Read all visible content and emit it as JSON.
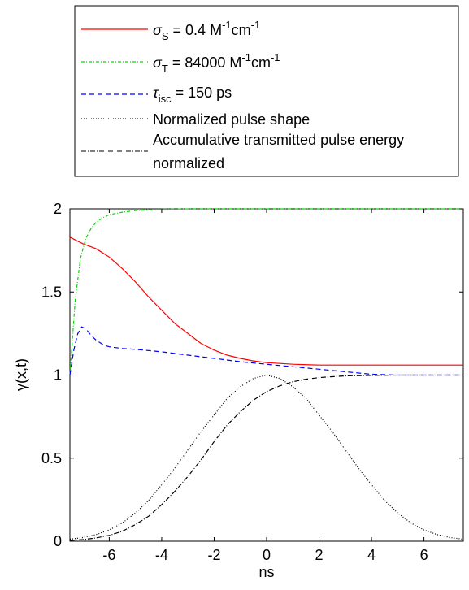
{
  "chart_data": {
    "type": "line",
    "xlabel": "ns",
    "ylabel": "γ(x,t)",
    "xlim": [
      -7.5,
      7.5
    ],
    "ylim": [
      0,
      2
    ],
    "xticks": [
      -6,
      -4,
      -2,
      0,
      2,
      4,
      6
    ],
    "yticks": [
      0,
      0.5,
      1,
      1.5,
      2
    ],
    "xtick_labels": [
      "-6",
      "-4",
      "-2",
      "0",
      "2",
      "4",
      "6"
    ],
    "ytick_labels": [
      "0",
      "0.5",
      "1",
      "1.5",
      "2"
    ],
    "grid": false,
    "legend_position": "top, outside axes",
    "legend": {
      "sigma_s": {
        "symbol": "σ",
        "sub": "S",
        "value": " = 0.4 M",
        "exp1": "-1",
        "mid": "cm",
        "exp2": "-1"
      },
      "sigma_t": {
        "symbol": "σ",
        "sub": "T",
        "value": " = 84000 M",
        "exp1": "-1",
        "mid": "cm",
        "exp2": "-1"
      },
      "tau_isc": {
        "symbol": "τ",
        "sub": "isc",
        "value": " = 150 ps"
      },
      "pulse_shape": "Normalized pulse shape",
      "energy_line1": "Accumulative transmitted pulse energy",
      "energy_line2": "normalized"
    },
    "series": [
      {
        "key": "sigma_s",
        "color": "#ff0000",
        "dash": "",
        "x": [
          -7.5,
          -7,
          -6.5,
          -6,
          -5.5,
          -5,
          -4.5,
          -4,
          -3.5,
          -3,
          -2.5,
          -2,
          -1.5,
          -1,
          -0.5,
          0,
          1,
          2,
          3,
          4,
          5,
          6,
          7,
          7.5
        ],
        "y": [
          1.83,
          1.79,
          1.76,
          1.71,
          1.64,
          1.56,
          1.47,
          1.39,
          1.31,
          1.25,
          1.19,
          1.15,
          1.12,
          1.1,
          1.085,
          1.075,
          1.065,
          1.06,
          1.06,
          1.06,
          1.06,
          1.06,
          1.06,
          1.06
        ]
      },
      {
        "key": "sigma_t",
        "color": "#00dd00",
        "dash": "4,2,1,2",
        "x": [
          -7.5,
          -7.3,
          -7.1,
          -6.9,
          -6.7,
          -6.5,
          -6.2,
          -6,
          -5.5,
          -5,
          -4.5,
          -4,
          -3,
          -2,
          0,
          2,
          4,
          6,
          7.5
        ],
        "y": [
          1.0,
          1.45,
          1.7,
          1.82,
          1.88,
          1.92,
          1.95,
          1.965,
          1.98,
          1.99,
          1.995,
          1.998,
          2.0,
          2.0,
          2.0,
          2.0,
          2.0,
          2.0,
          2.0
        ]
      },
      {
        "key": "tau_isc",
        "color": "#0000ff",
        "dash": "6,4",
        "x": [
          -7.5,
          -7.35,
          -7.2,
          -7.05,
          -6.9,
          -6.7,
          -6.5,
          -6.2,
          -6,
          -5.5,
          -5,
          -4,
          -3,
          -2,
          -1,
          0,
          1,
          2,
          3,
          4,
          5,
          6,
          7,
          7.5
        ],
        "y": [
          1.0,
          1.15,
          1.25,
          1.29,
          1.28,
          1.24,
          1.21,
          1.18,
          1.17,
          1.16,
          1.155,
          1.14,
          1.12,
          1.1,
          1.08,
          1.065,
          1.05,
          1.035,
          1.02,
          1.005,
          1.0,
          1.0,
          1.0,
          1.0
        ]
      },
      {
        "key": "pulse_shape",
        "color": "#000000",
        "dash": "1,2",
        "x": [
          -7.5,
          -7,
          -6.5,
          -6,
          -5.5,
          -5,
          -4.5,
          -4,
          -3.5,
          -3,
          -2.5,
          -2,
          -1.5,
          -1,
          -0.5,
          0,
          0.5,
          1,
          1.5,
          2,
          2.5,
          3,
          3.5,
          4,
          4.5,
          5,
          5.5,
          6,
          6.5,
          7,
          7.5
        ],
        "y": [
          0.012,
          0.022,
          0.04,
          0.068,
          0.11,
          0.17,
          0.245,
          0.34,
          0.44,
          0.55,
          0.66,
          0.76,
          0.86,
          0.93,
          0.98,
          1.0,
          0.98,
          0.93,
          0.86,
          0.76,
          0.66,
          0.55,
          0.44,
          0.34,
          0.245,
          0.17,
          0.11,
          0.068,
          0.04,
          0.022,
          0.012
        ]
      },
      {
        "key": "energy",
        "color": "#000000",
        "dash": "6,2,1,2",
        "x": [
          -7.5,
          -7,
          -6.5,
          -6,
          -5.5,
          -5,
          -4.5,
          -4,
          -3.5,
          -3,
          -2.5,
          -2,
          -1.5,
          -1,
          -0.5,
          0,
          0.5,
          1,
          1.5,
          2,
          2.5,
          3,
          4,
          5,
          6,
          7,
          7.5
        ],
        "y": [
          0.005,
          0.01,
          0.02,
          0.035,
          0.06,
          0.1,
          0.15,
          0.22,
          0.3,
          0.39,
          0.49,
          0.6,
          0.7,
          0.78,
          0.85,
          0.9,
          0.935,
          0.96,
          0.975,
          0.985,
          0.99,
          0.995,
          0.998,
          1.0,
          1.0,
          1.0,
          1.0
        ]
      }
    ]
  }
}
